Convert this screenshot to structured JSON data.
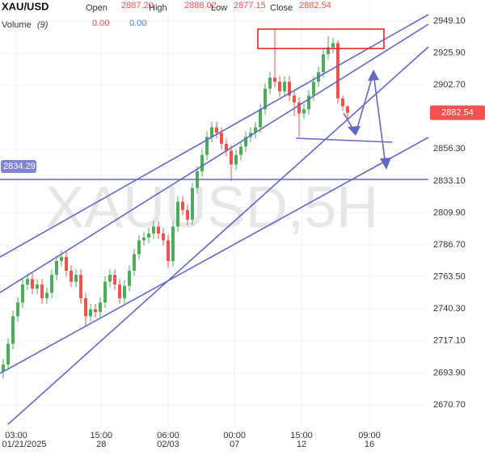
{
  "chart_data": {
    "type": "candlestick",
    "title": "XAU/USD",
    "ohlc_legend": [
      {
        "label": "Open",
        "value": "2887.20"
      },
      {
        "label": "High",
        "value": "2888.02"
      },
      {
        "label": "Low",
        "value": "2877.15"
      },
      {
        "label": "Close",
        "value": "2882.54"
      }
    ],
    "volume_label": "Volume",
    "volume_period": "(9)",
    "volume_values": [
      "0.00",
      "0.00"
    ],
    "watermark": "XAUUSD,5H",
    "level_label": "2834.29",
    "last_price": 2882.54,
    "up_color": "#4cae5a",
    "down_color": "#ef5350",
    "xlim": [
      -0.67,
      87.67
    ],
    "ylim": [
      2653.7,
      2964.3
    ],
    "xticks": [
      {
        "value": 2.67,
        "label": "03:00"
      },
      {
        "value": 20.2,
        "label": "15:00"
      },
      {
        "value": 34,
        "label": "06:00"
      },
      {
        "value": 47.7,
        "label": "00:00"
      },
      {
        "value": 61.5,
        "label": "15:00"
      },
      {
        "value": 75.5,
        "label": "09:00"
      }
    ],
    "xtick_dates": [
      {
        "value": 2.67,
        "label": "01/21/2025"
      },
      {
        "value": 20.2,
        "label": "28"
      },
      {
        "value": 34,
        "label": "02/03"
      },
      {
        "value": 47.7,
        "label": "07"
      },
      {
        "value": 61.5,
        "label": "12"
      },
      {
        "value": 75.5,
        "label": "16"
      }
    ],
    "yticks": [
      {
        "value": 2949.1,
        "label": "2949.10"
      },
      {
        "value": 2925.9,
        "label": "2925.90"
      },
      {
        "value": 2902.7,
        "label": "2902.70"
      },
      {
        "value": 2856.3,
        "label": "2856.30"
      },
      {
        "value": 2833.1,
        "label": "2833.10"
      },
      {
        "value": 2809.9,
        "label": "2809.90"
      },
      {
        "value": 2786.7,
        "label": "2786.70"
      },
      {
        "value": 2763.5,
        "label": "2763.50"
      },
      {
        "value": 2740.3,
        "label": "2740.30"
      },
      {
        "value": 2717.1,
        "label": "2717.10"
      },
      {
        "value": 2693.9,
        "label": "2693.90"
      },
      {
        "value": 2670.7,
        "label": "2670.70"
      }
    ],
    "open": [
      2695,
      2700,
      2715,
      2735,
      2745,
      2758,
      2762,
      2755,
      2758,
      2748,
      2752,
      2765,
      2775,
      2778,
      2768,
      2760,
      2765,
      2748,
      2735,
      2740,
      2738,
      2745,
      2760,
      2765,
      2758,
      2748,
      2757,
      2768,
      2780,
      2790,
      2792,
      2795,
      2800,
      2795,
      2790,
      2775,
      2800,
      2818,
      2812,
      2805,
      2828,
      2840,
      2852,
      2865,
      2872,
      2868,
      2860,
      2855,
      2845,
      2852,
      2858,
      2865,
      2868,
      2872,
      2885,
      2900,
      2908,
      2905,
      2898,
      2905,
      2895,
      2890,
      2882,
      2885,
      2895,
      2905,
      2912,
      2925,
      2930,
      2933,
      2893,
      2887.2
    ],
    "high": [
      2704,
      2719,
      2739,
      2749,
      2762,
      2766,
      2766,
      2762,
      2762,
      2756,
      2769,
      2779,
      2783,
      2782,
      2772,
      2769,
      2769,
      2752,
      2744,
      2744,
      2749,
      2764,
      2769,
      2769,
      2762,
      2761,
      2772,
      2784,
      2794,
      2796,
      2799,
      2804,
      2804,
      2799,
      2794,
      2804,
      2822,
      2822,
      2816,
      2832,
      2844,
      2856,
      2869,
      2876,
      2876,
      2872,
      2864,
      2859,
      2856,
      2862,
      2869,
      2872,
      2876,
      2889,
      2904,
      2912,
      2943,
      2909,
      2909,
      2909,
      2899,
      2894,
      2889,
      2899,
      2909,
      2916,
      2929,
      2938,
      2937,
      2935,
      2895,
      2888.02
    ],
    "low": [
      2690,
      2696,
      2711,
      2731,
      2741,
      2754,
      2751,
      2751,
      2744,
      2744,
      2748,
      2761,
      2771,
      2764,
      2756,
      2756,
      2744,
      2728,
      2731,
      2734,
      2734,
      2741,
      2756,
      2754,
      2744,
      2744,
      2753,
      2764,
      2776,
      2786,
      2788,
      2791,
      2791,
      2786,
      2770,
      2771,
      2796,
      2808,
      2801,
      2801,
      2824,
      2836,
      2848,
      2861,
      2864,
      2856,
      2851,
      2833,
      2841,
      2848,
      2854,
      2861,
      2864,
      2868,
      2881,
      2896,
      2901,
      2894,
      2894,
      2891,
      2880,
      2865,
      2878,
      2881,
      2891,
      2901,
      2908,
      2921,
      2926,
      2889,
      2884,
      2877.15
    ],
    "close": [
      2700,
      2715,
      2735,
      2745,
      2758,
      2762,
      2755,
      2758,
      2748,
      2752,
      2765,
      2775,
      2778,
      2768,
      2760,
      2765,
      2748,
      2735,
      2740,
      2738,
      2745,
      2760,
      2765,
      2758,
      2748,
      2757,
      2768,
      2780,
      2790,
      2792,
      2795,
      2800,
      2795,
      2790,
      2775,
      2800,
      2818,
      2812,
      2805,
      2828,
      2840,
      2852,
      2865,
      2872,
      2868,
      2860,
      2855,
      2845,
      2852,
      2858,
      2865,
      2868,
      2872,
      2885,
      2900,
      2908,
      2905,
      2898,
      2905,
      2895,
      2890,
      2882,
      2885,
      2895,
      2905,
      2912,
      2925,
      2930,
      2933,
      2893,
      2887.2,
      2882.54
    ]
  }
}
